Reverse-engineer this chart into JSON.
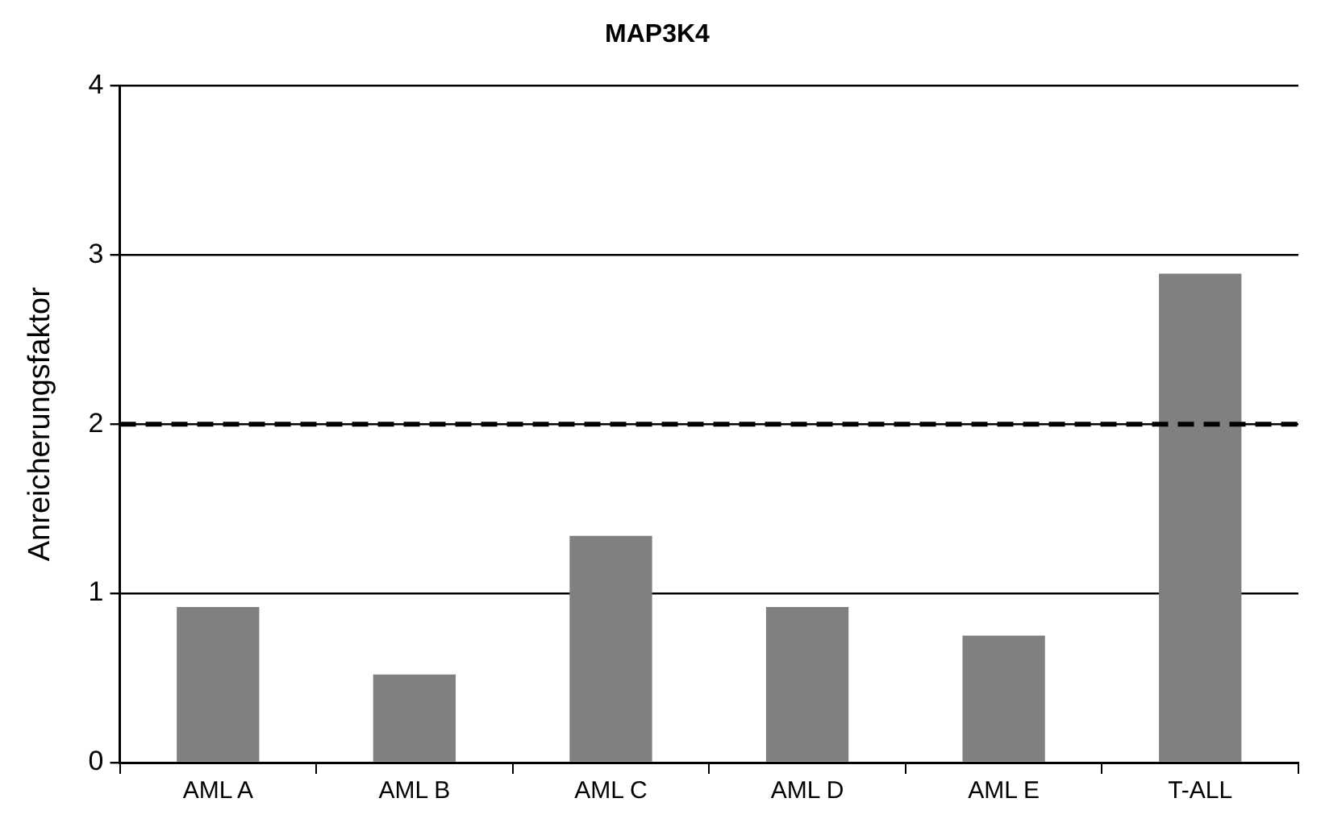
{
  "chart_data": {
    "type": "bar",
    "title": "MAP3K4",
    "ylabel": "Anreicherungsfaktor",
    "categories": [
      "AML A",
      "AML B",
      "AML C",
      "AML D",
      "AML E",
      "T-ALL"
    ],
    "values": [
      0.92,
      0.52,
      1.34,
      0.92,
      0.75,
      2.89
    ],
    "color": "#808080",
    "ylim": [
      0,
      4
    ],
    "yticks": [
      0,
      1,
      2,
      3,
      4
    ],
    "grid": "y",
    "ref_lines": [
      {
        "axis": "y",
        "value": 2,
        "color": "#000000",
        "line_style": "dashed"
      }
    ]
  }
}
